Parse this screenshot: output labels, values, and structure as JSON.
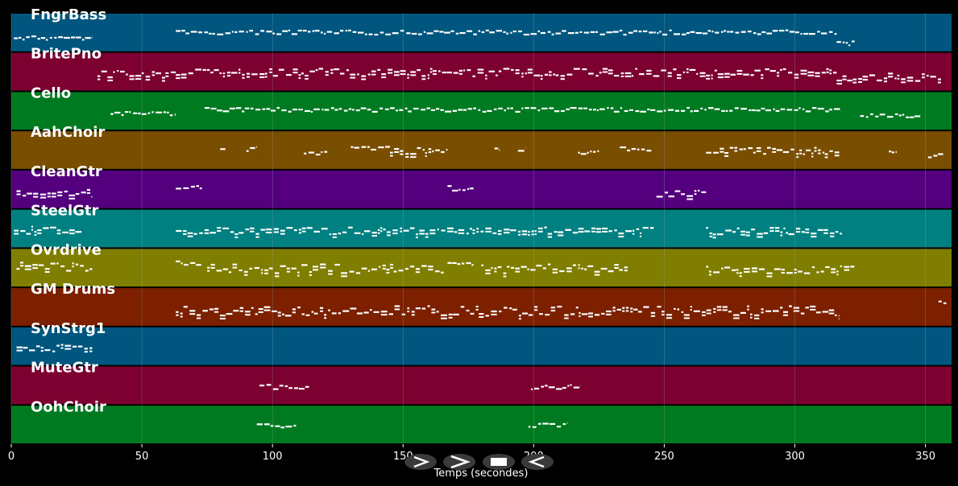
{
  "colors": {
    "background": "#000000",
    "gridline": "#9aa8b0",
    "note": "#ffffff",
    "control_bg": "#3a3a3a"
  },
  "axis": {
    "xlabel": "Temps (secondes)",
    "xlim": [
      0,
      360
    ],
    "ticks": [
      0,
      50,
      100,
      150,
      200,
      250,
      300,
      350
    ]
  },
  "tracks": [
    {
      "name": "FngrBass",
      "color": "#00567e",
      "segments": [
        [
          1,
          31,
          0.62,
          0.5
        ],
        [
          63,
          316,
          0.48,
          0.55
        ],
        [
          316,
          323,
          0.74,
          0.65
        ]
      ]
    },
    {
      "name": "BritePno",
      "color": "#7c0030",
      "segments": [
        [
          33,
          63,
          0.55,
          0.95
        ],
        [
          63,
          316,
          0.5,
          0.95
        ],
        [
          316,
          356,
          0.62,
          0.95
        ]
      ]
    },
    {
      "name": "Cello",
      "color": "#007a20",
      "segments": [
        [
          38,
          63,
          0.55,
          0.45
        ],
        [
          74,
          318,
          0.45,
          0.5
        ],
        [
          325,
          348,
          0.6,
          0.45
        ]
      ]
    },
    {
      "name": "AahChoir",
      "color": "#7a4e00",
      "segments": [
        [
          80,
          82,
          0.45,
          0.6
        ],
        [
          90,
          94,
          0.45,
          0.6
        ],
        [
          112,
          121,
          0.55,
          0.6
        ],
        [
          130,
          145,
          0.45,
          0.6
        ],
        [
          145,
          167,
          0.5,
          0.8
        ],
        [
          185,
          187,
          0.45,
          0.6
        ],
        [
          194,
          197,
          0.45,
          0.6
        ],
        [
          217,
          225,
          0.55,
          0.6
        ],
        [
          233,
          245,
          0.45,
          0.6
        ],
        [
          266,
          317,
          0.5,
          0.8
        ],
        [
          336,
          339,
          0.5,
          0.6
        ],
        [
          351,
          357,
          0.62,
          0.6
        ]
      ]
    },
    {
      "name": "CleanGtr",
      "color": "#54007e",
      "segments": [
        [
          2,
          31,
          0.58,
          0.9
        ],
        [
          63,
          73,
          0.45,
          0.6
        ],
        [
          167,
          177,
          0.45,
          0.6
        ],
        [
          247,
          266,
          0.58,
          0.9
        ]
      ]
    },
    {
      "name": "SteelGtr",
      "color": "#008080",
      "segments": [
        [
          1,
          27,
          0.52,
          0.9
        ],
        [
          63,
          246,
          0.54,
          0.9
        ],
        [
          266,
          318,
          0.54,
          0.9
        ]
      ]
    },
    {
      "name": "Ovrdrive",
      "color": "#807e00",
      "segments": [
        [
          2,
          31,
          0.45,
          1.1
        ],
        [
          63,
          73,
          0.36,
          0.6
        ],
        [
          75,
          166,
          0.5,
          1.2
        ],
        [
          167,
          177,
          0.36,
          0.6
        ],
        [
          180,
          236,
          0.5,
          1.2
        ],
        [
          266,
          316,
          0.55,
          1.0
        ],
        [
          316,
          323,
          0.52,
          0.8
        ]
      ]
    },
    {
      "name": "GM Drums",
      "color": "#7c2000",
      "segments": [
        [
          63,
          317,
          0.58,
          1.2
        ],
        [
          355,
          358,
          0.4,
          0.6
        ]
      ]
    },
    {
      "name": "SynStrg1",
      "color": "#00567e",
      "segments": [
        [
          2,
          31,
          0.52,
          0.9
        ]
      ]
    },
    {
      "name": "MuteGtr",
      "color": "#7c0030",
      "segments": [
        [
          95,
          114,
          0.52,
          0.6
        ],
        [
          199,
          218,
          0.52,
          0.6
        ]
      ]
    },
    {
      "name": "OohChoir",
      "color": "#007a20",
      "segments": [
        [
          94,
          109,
          0.5,
          0.6
        ],
        [
          198,
          213,
          0.5,
          0.6
        ]
      ]
    }
  ],
  "controls": [
    {
      "name": "play-icon",
      "glyph": "play"
    },
    {
      "name": "fast-forward-icon",
      "glyph": "chevron"
    },
    {
      "name": "stop-icon",
      "glyph": "stop"
    },
    {
      "name": "rewind-icon",
      "glyph": "back"
    }
  ]
}
